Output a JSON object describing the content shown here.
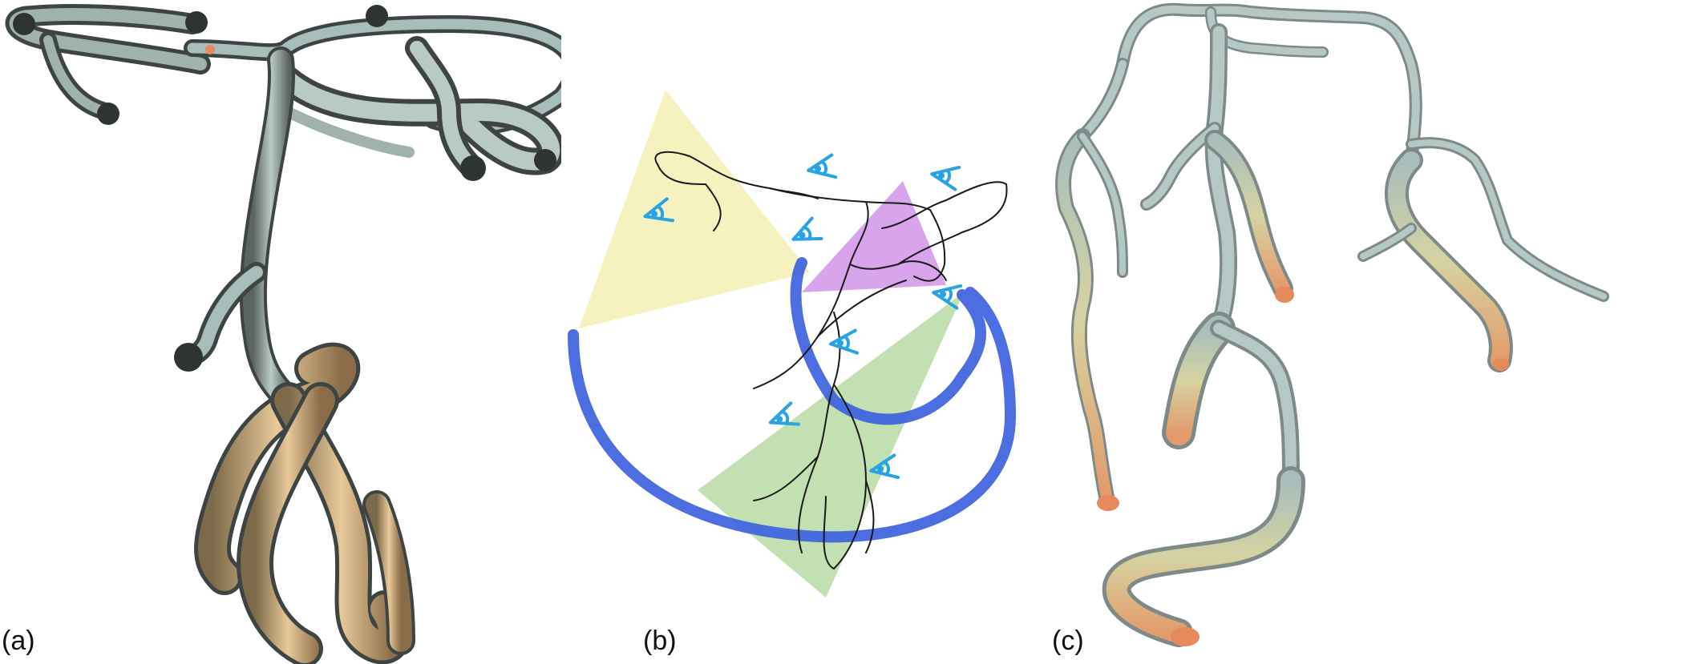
{
  "figure": {
    "panels": [
      {
        "label": "(a)"
      },
      {
        "label": "(b)"
      },
      {
        "label": "(c)"
      }
    ]
  },
  "colors": {
    "vessel": "#a7bdbc",
    "vessel_dark": "#3b4140",
    "vessel_warm": "#d9c99a",
    "vessel_tip": "#e58a5a",
    "arc": "#3d62de",
    "frustum_yellow": "#f3eeab",
    "frustum_purple": "#c77ee3",
    "frustum_green": "#a8d392",
    "eye": "#29a3e3",
    "sketch": "#1a1a1a"
  },
  "icons": {
    "eye": "eye-icon"
  }
}
